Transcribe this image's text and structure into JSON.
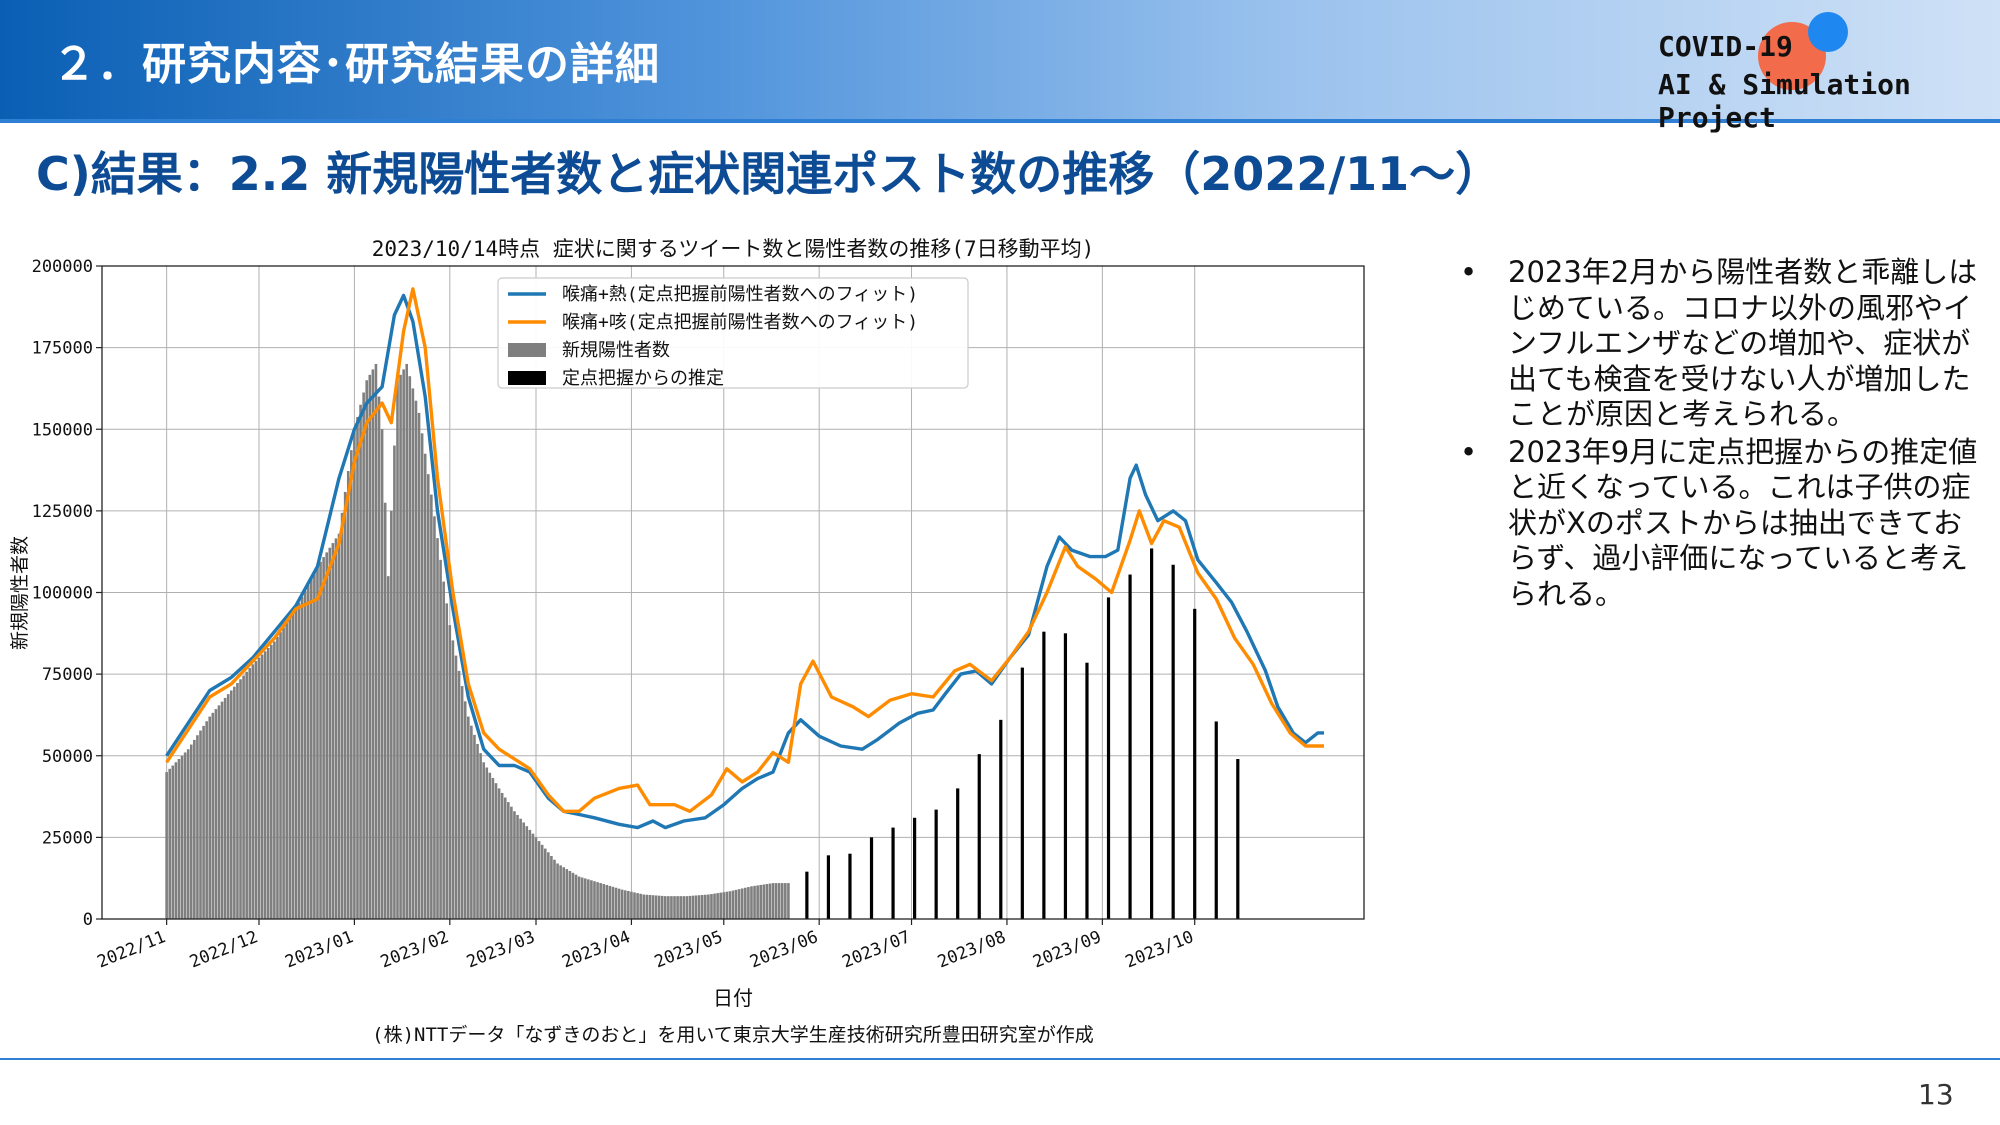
{
  "header": {
    "title": "２．研究内容･研究結果の詳細",
    "logo_line1": "COVID-19",
    "logo_line2": "AI & Simulation Project"
  },
  "subtitle": "C)結果：2.2 新規陽性者数と症状関連ポスト数の推移（2022/11～）",
  "bullets": [
    "2023年2月から陽性者数と乖離しはじめている。コロナ以外の風邪やインフルエンザなどの増加や、症状が出ても検査を受けない人が増加したことが原因と考えられる。",
    "2023年9月に定点把握からの推定値と近くなっている。これは子供の症状がXのポストからは抽出できておらず、過小評価になっていると考えられる。"
  ],
  "bullet_symbol": "•",
  "page_number": "13",
  "colors": {
    "blue_line": "#1f77b4",
    "orange_line": "#ff8c00",
    "gray_bar": "#7f7f7f",
    "black_bar": "#000000",
    "accent": "#0d4c95"
  },
  "chart_data": {
    "type": "bar",
    "title": "2023/10/14時点 症状に関するツイート数と陽性者数の推移(7日移動平均)",
    "xlabel": "日付",
    "ylabel": "新規陽性者数",
    "ylim": [
      0,
      200000
    ],
    "yticks": [
      "0",
      "25000",
      "50000",
      "75000",
      "100000",
      "125000",
      "150000",
      "175000",
      "200000"
    ],
    "xticks": [
      "2022/11",
      "2022/12",
      "2023/01",
      "2023/02",
      "2023/03",
      "2023/04",
      "2023/05",
      "2023/06",
      "2023/07",
      "2023/08",
      "2023/09",
      "2023/10"
    ],
    "grid": true,
    "legend_position": "top-center",
    "note": "(株)NTTデータ「なずきのおと」を用いて東京大学生産技術研究所豊田研究室が作成",
    "series": [
      {
        "name": "喉痛+熱(定点把握前陽性者数へのフィット)",
        "kind": "line",
        "color": "#1f77b4",
        "points": [
          [
            "2022-11-01",
            50000
          ],
          [
            "2022-11-08",
            60000
          ],
          [
            "2022-11-15",
            70000
          ],
          [
            "2022-11-22",
            74000
          ],
          [
            "2022-11-29",
            80000
          ],
          [
            "2022-12-06",
            88000
          ],
          [
            "2022-12-13",
            96000
          ],
          [
            "2022-12-20",
            108000
          ],
          [
            "2022-12-27",
            135000
          ],
          [
            "2023-01-01",
            150000
          ],
          [
            "2023-01-05",
            158000
          ],
          [
            "2023-01-10",
            163000
          ],
          [
            "2023-01-14",
            185000
          ],
          [
            "2023-01-17",
            191000
          ],
          [
            "2023-01-20",
            183000
          ],
          [
            "2023-01-24",
            160000
          ],
          [
            "2023-01-28",
            125000
          ],
          [
            "2023-02-02",
            95000
          ],
          [
            "2023-02-07",
            68000
          ],
          [
            "2023-02-12",
            52000
          ],
          [
            "2023-02-17",
            47000
          ],
          [
            "2023-02-22",
            47000
          ],
          [
            "2023-02-27",
            45000
          ],
          [
            "2023-03-05",
            37000
          ],
          [
            "2023-03-10",
            33000
          ],
          [
            "2023-03-15",
            32000
          ],
          [
            "2023-03-20",
            31000
          ],
          [
            "2023-03-28",
            29000
          ],
          [
            "2023-04-03",
            28000
          ],
          [
            "2023-04-08",
            30000
          ],
          [
            "2023-04-12",
            28000
          ],
          [
            "2023-04-18",
            30000
          ],
          [
            "2023-04-25",
            31000
          ],
          [
            "2023-05-01",
            35000
          ],
          [
            "2023-05-07",
            40000
          ],
          [
            "2023-05-12",
            43000
          ],
          [
            "2023-05-17",
            45000
          ],
          [
            "2023-05-22",
            57000
          ],
          [
            "2023-05-26",
            61000
          ],
          [
            "2023-06-01",
            56000
          ],
          [
            "2023-06-08",
            53000
          ],
          [
            "2023-06-15",
            52000
          ],
          [
            "2023-06-20",
            55000
          ],
          [
            "2023-06-27",
            60000
          ],
          [
            "2023-07-03",
            63000
          ],
          [
            "2023-07-08",
            64000
          ],
          [
            "2023-07-12",
            69000
          ],
          [
            "2023-07-17",
            75000
          ],
          [
            "2023-07-22",
            76000
          ],
          [
            "2023-07-27",
            72000
          ],
          [
            "2023-08-02",
            80000
          ],
          [
            "2023-08-08",
            87000
          ],
          [
            "2023-08-14",
            108000
          ],
          [
            "2023-08-18",
            117000
          ],
          [
            "2023-08-22",
            113000
          ],
          [
            "2023-08-28",
            111000
          ],
          [
            "2023-09-02",
            111000
          ],
          [
            "2023-09-06",
            113000
          ],
          [
            "2023-09-10",
            135000
          ],
          [
            "2023-09-12",
            139000
          ],
          [
            "2023-09-15",
            130000
          ],
          [
            "2023-09-19",
            122000
          ],
          [
            "2023-09-24",
            125000
          ],
          [
            "2023-09-28",
            122000
          ],
          [
            "2023-10-02",
            110000
          ],
          [
            "2023-10-08",
            103000
          ],
          [
            "2023-10-13",
            97000
          ],
          [
            "2023-10-18",
            88000
          ],
          [
            "2023-10-24",
            76000
          ],
          [
            "2023-10-28",
            65000
          ],
          [
            "2023-11-02",
            57000
          ],
          [
            "2023-11-06",
            54000
          ],
          [
            "2023-11-10",
            57000
          ],
          [
            "2023-11-12",
            57000
          ]
        ]
      },
      {
        "name": "喉痛+咳(定点把握前陽性者数へのフィット)",
        "kind": "line",
        "color": "#ff8c00",
        "points": [
          [
            "2022-11-01",
            48000
          ],
          [
            "2022-11-08",
            58000
          ],
          [
            "2022-11-15",
            68000
          ],
          [
            "2022-11-22",
            72000
          ],
          [
            "2022-11-29",
            79000
          ],
          [
            "2022-12-06",
            86000
          ],
          [
            "2022-12-13",
            95000
          ],
          [
            "2022-12-20",
            98000
          ],
          [
            "2022-12-27",
            115000
          ],
          [
            "2023-01-01",
            140000
          ],
          [
            "2023-01-05",
            152000
          ],
          [
            "2023-01-10",
            158000
          ],
          [
            "2023-01-13",
            152000
          ],
          [
            "2023-01-17",
            180000
          ],
          [
            "2023-01-20",
            193000
          ],
          [
            "2023-01-24",
            175000
          ],
          [
            "2023-01-28",
            135000
          ],
          [
            "2023-02-02",
            100000
          ],
          [
            "2023-02-07",
            72000
          ],
          [
            "2023-02-12",
            57000
          ],
          [
            "2023-02-17",
            52000
          ],
          [
            "2023-02-22",
            49000
          ],
          [
            "2023-02-27",
            46000
          ],
          [
            "2023-03-05",
            38000
          ],
          [
            "2023-03-10",
            33000
          ],
          [
            "2023-03-15",
            33000
          ],
          [
            "2023-03-20",
            37000
          ],
          [
            "2023-03-28",
            40000
          ],
          [
            "2023-04-03",
            41000
          ],
          [
            "2023-04-07",
            35000
          ],
          [
            "2023-04-15",
            35000
          ],
          [
            "2023-04-20",
            33000
          ],
          [
            "2023-04-27",
            38000
          ],
          [
            "2023-05-02",
            46000
          ],
          [
            "2023-05-07",
            42000
          ],
          [
            "2023-05-12",
            45000
          ],
          [
            "2023-05-17",
            51000
          ],
          [
            "2023-05-22",
            48000
          ],
          [
            "2023-05-26",
            72000
          ],
          [
            "2023-05-30",
            79000
          ],
          [
            "2023-06-05",
            68000
          ],
          [
            "2023-06-12",
            65000
          ],
          [
            "2023-06-17",
            62000
          ],
          [
            "2023-06-24",
            67000
          ],
          [
            "2023-07-01",
            69000
          ],
          [
            "2023-07-08",
            68000
          ],
          [
            "2023-07-15",
            76000
          ],
          [
            "2023-07-20",
            78000
          ],
          [
            "2023-07-27",
            73000
          ],
          [
            "2023-08-02",
            80000
          ],
          [
            "2023-08-08",
            88000
          ],
          [
            "2023-08-14",
            100000
          ],
          [
            "2023-08-20",
            114000
          ],
          [
            "2023-08-24",
            108000
          ],
          [
            "2023-08-30",
            104000
          ],
          [
            "2023-09-04",
            100000
          ],
          [
            "2023-09-10",
            116000
          ],
          [
            "2023-09-13",
            125000
          ],
          [
            "2023-09-17",
            115000
          ],
          [
            "2023-09-21",
            122000
          ],
          [
            "2023-09-26",
            120000
          ],
          [
            "2023-10-02",
            106000
          ],
          [
            "2023-10-08",
            98000
          ],
          [
            "2023-10-14",
            86000
          ],
          [
            "2023-10-20",
            78000
          ],
          [
            "2023-10-26",
            66000
          ],
          [
            "2023-11-01",
            57000
          ],
          [
            "2023-11-06",
            53000
          ],
          [
            "2023-11-12",
            53000
          ]
        ]
      },
      {
        "name": "新規陽性者数",
        "kind": "bar",
        "color": "#7f7f7f",
        "points": [
          [
            "2022-11-01",
            45000
          ],
          [
            "2022-11-08",
            52000
          ],
          [
            "2022-11-15",
            62000
          ],
          [
            "2022-11-22",
            70000
          ],
          [
            "2022-11-29",
            78000
          ],
          [
            "2022-12-06",
            85000
          ],
          [
            "2022-12-13",
            95000
          ],
          [
            "2022-12-20",
            108000
          ],
          [
            "2022-12-27",
            118000
          ],
          [
            "2023-01-01",
            150000
          ],
          [
            "2023-01-05",
            165000
          ],
          [
            "2023-01-08",
            170000
          ],
          [
            "2023-01-10",
            150000
          ],
          [
            "2023-01-12",
            105000
          ],
          [
            "2023-01-15",
            165000
          ],
          [
            "2023-01-18",
            170000
          ],
          [
            "2023-01-22",
            155000
          ],
          [
            "2023-01-26",
            130000
          ],
          [
            "2023-02-01",
            90000
          ],
          [
            "2023-02-07",
            62000
          ],
          [
            "2023-02-12",
            48000
          ],
          [
            "2023-02-17",
            40000
          ],
          [
            "2023-02-22",
            33000
          ],
          [
            "2023-03-01",
            25000
          ],
          [
            "2023-03-08",
            17000
          ],
          [
            "2023-03-15",
            13000
          ],
          [
            "2023-03-22",
            11000
          ],
          [
            "2023-03-29",
            9000
          ],
          [
            "2023-04-05",
            7500
          ],
          [
            "2023-04-12",
            7000
          ],
          [
            "2023-04-19",
            7000
          ],
          [
            "2023-04-26",
            7500
          ],
          [
            "2023-05-03",
            8500
          ],
          [
            "2023-05-10",
            10000
          ],
          [
            "2023-05-17",
            11000
          ],
          [
            "2023-05-22",
            11000
          ]
        ]
      },
      {
        "name": "定点把握からの推定",
        "kind": "bar",
        "color": "#000000",
        "points": [
          [
            "2023-05-28",
            14500
          ],
          [
            "2023-06-04",
            19500
          ],
          [
            "2023-06-11",
            20000
          ],
          [
            "2023-06-18",
            25000
          ],
          [
            "2023-06-25",
            28000
          ],
          [
            "2023-07-02",
            31000
          ],
          [
            "2023-07-09",
            33500
          ],
          [
            "2023-07-16",
            40000
          ],
          [
            "2023-07-23",
            50500
          ],
          [
            "2023-07-30",
            61000
          ],
          [
            "2023-08-06",
            77000
          ],
          [
            "2023-08-13",
            88000
          ],
          [
            "2023-08-20",
            87500
          ],
          [
            "2023-08-27",
            78500
          ],
          [
            "2023-09-03",
            98500
          ],
          [
            "2023-09-10",
            105500
          ],
          [
            "2023-09-17",
            113500
          ],
          [
            "2023-09-24",
            108500
          ],
          [
            "2023-10-01",
            95000
          ],
          [
            "2023-10-08",
            60500
          ],
          [
            "2023-10-15",
            49000
          ]
        ]
      }
    ]
  }
}
